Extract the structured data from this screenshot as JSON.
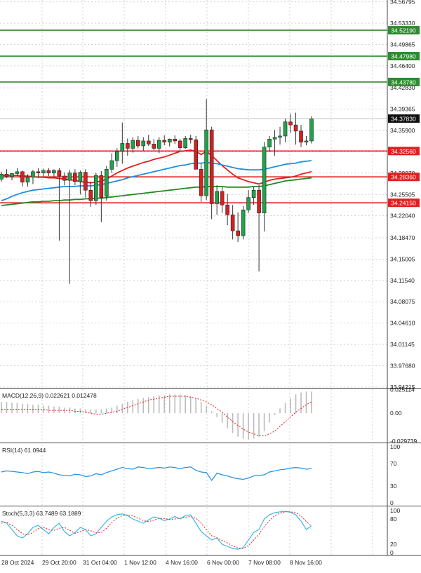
{
  "chart_data": {
    "type": "candlestick",
    "timeframe_labels": [
      "28 Oct 2024",
      "29 Oct 20:00",
      "31 Oct 04:00",
      "1 Nov 12:00",
      "4 Nov 16:00",
      "6 Nov 00:00",
      "7 Nov 08:00",
      "8 Nov 16:00"
    ],
    "price_axis": {
      "ticks": [
        "34.56795",
        "34.53330",
        "34.49865",
        "34.46400",
        "34.42830",
        "34.39365",
        "34.35900",
        "34.32435",
        "34.28970",
        "34.25505",
        "34.22040",
        "34.18470",
        "34.15005",
        "34.11540",
        "34.08075",
        "34.04610",
        "34.01145",
        "33.97680",
        "33.94215"
      ],
      "range": [
        33.942,
        34.571
      ],
      "current_price": "34.37830"
    },
    "horizontal_levels": [
      {
        "value": 34.5219,
        "label": "34.52190",
        "color": "#2e8b2e"
      },
      {
        "value": 34.4798,
        "label": "34.47980",
        "color": "#2e8b2e"
      },
      {
        "value": 34.4378,
        "label": "34.43780",
        "color": "#2e8b2e"
      },
      {
        "value": 34.3256,
        "label": "34.32560",
        "color": "#e02020"
      },
      {
        "value": 34.2836,
        "label": "34.28360",
        "color": "#e02020"
      },
      {
        "value": 34.2415,
        "label": "34.24150",
        "color": "#e02020"
      }
    ],
    "candles": [
      [
        34.28,
        34.292,
        34.276,
        34.288
      ],
      [
        34.288,
        34.296,
        34.282,
        34.284
      ],
      [
        34.284,
        34.29,
        34.278,
        34.289
      ],
      [
        34.289,
        34.298,
        34.285,
        34.292
      ],
      [
        34.292,
        34.294,
        34.268,
        34.275
      ],
      [
        34.275,
        34.288,
        34.268,
        34.283
      ],
      [
        34.283,
        34.295,
        34.272,
        34.292
      ],
      [
        34.292,
        34.298,
        34.283,
        34.29
      ],
      [
        34.29,
        34.297,
        34.283,
        34.294
      ],
      [
        34.294,
        34.298,
        34.285,
        34.29
      ],
      [
        34.29,
        34.296,
        34.284,
        34.294
      ],
      [
        34.294,
        34.298,
        34.18,
        34.285
      ],
      [
        34.285,
        34.291,
        34.27,
        34.278
      ],
      [
        34.278,
        34.295,
        34.11,
        34.29
      ],
      [
        34.29,
        34.296,
        34.27,
        34.276
      ],
      [
        34.276,
        34.294,
        34.255,
        34.291
      ],
      [
        34.291,
        34.296,
        34.25,
        34.262
      ],
      [
        34.262,
        34.276,
        34.235,
        34.245
      ],
      [
        34.245,
        34.29,
        34.238,
        34.286
      ],
      [
        34.286,
        34.293,
        34.21,
        34.25
      ],
      [
        34.252,
        34.301,
        34.245,
        34.296
      ],
      [
        34.296,
        34.322,
        34.29,
        34.31
      ],
      [
        34.31,
        34.33,
        34.3,
        34.325
      ],
      [
        34.325,
        34.372,
        34.305,
        34.338
      ],
      [
        34.338,
        34.346,
        34.318,
        34.33
      ],
      [
        34.33,
        34.348,
        34.323,
        34.343
      ],
      [
        34.343,
        34.35,
        34.33,
        34.334
      ],
      [
        34.334,
        34.348,
        34.326,
        34.342
      ],
      [
        34.342,
        34.352,
        34.334,
        34.337
      ],
      [
        34.337,
        34.345,
        34.327,
        34.33
      ],
      [
        34.33,
        34.348,
        34.322,
        34.343
      ],
      [
        34.343,
        34.351,
        34.335,
        34.34
      ],
      [
        34.34,
        34.346,
        34.333,
        34.345
      ],
      [
        34.345,
        34.351,
        34.337,
        34.342
      ],
      [
        34.342,
        34.345,
        34.327,
        34.331
      ],
      [
        34.331,
        34.35,
        34.329,
        34.346
      ],
      [
        34.346,
        34.352,
        34.338,
        34.344
      ],
      [
        34.344,
        34.35,
        34.296,
        34.296
      ],
      [
        34.296,
        34.305,
        34.243,
        34.253
      ],
      [
        34.253,
        34.41,
        34.246,
        34.36
      ],
      [
        34.36,
        34.365,
        34.215,
        34.24
      ],
      [
        34.24,
        34.27,
        34.222,
        34.26
      ],
      [
        34.26,
        34.267,
        34.225,
        34.238
      ],
      [
        34.238,
        34.256,
        34.205,
        34.222
      ],
      [
        34.222,
        34.238,
        34.182,
        34.196
      ],
      [
        34.196,
        34.226,
        34.178,
        34.188
      ],
      [
        34.188,
        34.236,
        34.182,
        34.23
      ],
      [
        34.23,
        34.262,
        34.225,
        34.25
      ],
      [
        34.25,
        34.267,
        34.238,
        34.262
      ],
      [
        34.262,
        34.27,
        34.13,
        34.225
      ],
      [
        34.225,
        34.34,
        34.195,
        34.332
      ],
      [
        34.332,
        34.35,
        34.324,
        34.345
      ],
      [
        34.345,
        34.36,
        34.318,
        34.348
      ],
      [
        34.348,
        34.365,
        34.336,
        34.35
      ],
      [
        34.35,
        34.378,
        34.34,
        34.373
      ],
      [
        34.373,
        34.386,
        34.355,
        34.368
      ],
      [
        34.368,
        34.388,
        34.336,
        34.358
      ],
      [
        34.358,
        34.368,
        34.332,
        34.34
      ],
      [
        34.34,
        34.35,
        34.335,
        34.342
      ],
      [
        34.342,
        34.382,
        34.338,
        34.378
      ]
    ],
    "moving_averages": [
      {
        "color": "#e02020",
        "values": [
          34.286,
          34.286,
          34.286,
          34.286,
          34.285,
          34.285,
          34.284,
          34.283,
          34.283,
          34.282,
          34.282,
          34.281,
          34.28,
          34.279,
          34.278,
          34.276,
          34.275,
          34.274,
          34.275,
          34.277,
          34.28,
          34.285,
          34.29,
          34.294,
          34.298,
          34.301,
          34.304,
          34.307,
          34.309,
          34.312,
          34.314,
          34.316,
          34.319,
          34.322,
          34.325,
          34.326,
          34.327,
          34.325,
          34.32,
          34.325,
          34.318,
          34.31,
          34.302,
          34.295,
          34.288,
          34.282,
          34.279,
          34.276,
          34.274,
          34.272,
          34.275,
          34.278,
          34.28,
          34.281,
          34.282,
          34.283,
          34.285,
          34.288,
          34.29,
          34.292
        ]
      },
      {
        "color": "#1e8fe0",
        "values": [
          34.245,
          34.248,
          34.252,
          34.255,
          34.258,
          34.26,
          34.262,
          34.263,
          34.264,
          34.265,
          34.266,
          34.267,
          34.268,
          34.268,
          34.268,
          34.269,
          34.269,
          34.269,
          34.27,
          34.271,
          34.273,
          34.275,
          34.277,
          34.279,
          34.282,
          34.284,
          34.286,
          34.288,
          34.29,
          34.292,
          34.294,
          34.296,
          34.298,
          34.3,
          34.302,
          34.303,
          34.305,
          34.306,
          34.306,
          34.307,
          34.306,
          34.305,
          34.303,
          34.301,
          34.299,
          34.297,
          34.296,
          34.295,
          34.295,
          34.295,
          34.296,
          34.298,
          34.3,
          34.302,
          34.304,
          34.305,
          34.306,
          34.308,
          34.309,
          34.31
        ]
      },
      {
        "color": "#228b22",
        "values": [
          34.237,
          34.238,
          34.239,
          34.24,
          34.241,
          34.242,
          34.243,
          34.243,
          34.244,
          34.244,
          34.245,
          34.245,
          34.246,
          34.246,
          34.247,
          34.247,
          34.248,
          34.248,
          34.249,
          34.249,
          34.25,
          34.251,
          34.252,
          34.253,
          34.254,
          34.255,
          34.256,
          34.257,
          34.258,
          34.259,
          34.26,
          34.261,
          34.262,
          34.263,
          34.264,
          34.265,
          34.266,
          34.267,
          34.267,
          34.268,
          34.268,
          34.268,
          34.268,
          34.267,
          34.267,
          34.267,
          34.267,
          34.267,
          34.268,
          34.268,
          34.269,
          34.271,
          34.273,
          34.275,
          34.277,
          34.278,
          34.279,
          34.28,
          34.281,
          34.282
        ]
      }
    ],
    "macd": {
      "label": "MACD(12,26,9) 0.022621 0.012478",
      "ticks": [
        "0.025114",
        "0.00",
        "-0.029739"
      ],
      "range": [
        -0.0305,
        0.0255
      ],
      "histogram": [
        0.012,
        0.012,
        0.011,
        0.011,
        0.01,
        0.01,
        0.009,
        0.009,
        0.008,
        0.008,
        0.007,
        0.007,
        0.006,
        0.006,
        0.005,
        0.005,
        0.004,
        0.004,
        0.004,
        0.004,
        0.005,
        0.006,
        0.008,
        0.01,
        0.012,
        0.014,
        0.015,
        0.016,
        0.017,
        0.018,
        0.019,
        0.019,
        0.02,
        0.02,
        0.02,
        0.019,
        0.018,
        0.016,
        0.012,
        0.008,
        0.002,
        -0.004,
        -0.01,
        -0.016,
        -0.021,
        -0.025,
        -0.027,
        -0.028,
        -0.027,
        -0.025,
        -0.019,
        -0.01,
        -0.002,
        0.005,
        0.011,
        0.016,
        0.02,
        0.022,
        0.023,
        0.023
      ],
      "signal": [
        0.004,
        0.004,
        0.004,
        0.004,
        0.004,
        0.004,
        0.004,
        0.004,
        0.004,
        0.003,
        0.003,
        0.003,
        0.003,
        0.003,
        0.002,
        0.002,
        0.001,
        0.0,
        -0.001,
        -0.001,
        0.0,
        0.001,
        0.002,
        0.004,
        0.006,
        0.008,
        0.01,
        0.012,
        0.014,
        0.015,
        0.016,
        0.017,
        0.018,
        0.018,
        0.018,
        0.018,
        0.017,
        0.016,
        0.014,
        0.012,
        0.009,
        0.005,
        0.001,
        -0.004,
        -0.009,
        -0.013,
        -0.017,
        -0.02,
        -0.022,
        -0.024,
        -0.024,
        -0.022,
        -0.019,
        -0.014,
        -0.009,
        -0.004,
        0.001,
        0.005,
        0.009,
        0.012
      ]
    },
    "rsi": {
      "label": "RSI(14) 61.0944",
      "ticks": [
        "100",
        "70",
        "30",
        "0"
      ],
      "range": [
        0,
        100
      ],
      "values": [
        55,
        57,
        56,
        55,
        54,
        52,
        55,
        56,
        54,
        55,
        53,
        50,
        49,
        48,
        51,
        50,
        47,
        48,
        52,
        50,
        54,
        57,
        60,
        63,
        61,
        60,
        64,
        63,
        61,
        62,
        63,
        62,
        64,
        63,
        61,
        63,
        64,
        58,
        55,
        54,
        40,
        53,
        50,
        48,
        45,
        43,
        42,
        44,
        48,
        49,
        50,
        55,
        57,
        59,
        60,
        62,
        63,
        62,
        60,
        61
      ]
    },
    "stochastic": {
      "label": "Stoch(5,3,3) 63.7489 63.1889",
      "ticks": [
        "100",
        "80",
        "20",
        "0"
      ],
      "range": [
        0,
        100
      ],
      "k": [
        75,
        70,
        55,
        40,
        35,
        45,
        60,
        65,
        55,
        45,
        60,
        70,
        50,
        40,
        48,
        60,
        55,
        40,
        45,
        60,
        75,
        85,
        90,
        92,
        88,
        80,
        75,
        70,
        78,
        85,
        82,
        76,
        80,
        86,
        80,
        88,
        90,
        70,
        50,
        40,
        30,
        35,
        20,
        15,
        10,
        8,
        12,
        30,
        48,
        55,
        80,
        90,
        95,
        97,
        98,
        96,
        90,
        75,
        55,
        64
      ],
      "d": [
        70,
        72,
        65,
        55,
        45,
        42,
        48,
        57,
        60,
        55,
        53,
        58,
        60,
        53,
        46,
        50,
        55,
        52,
        47,
        48,
        58,
        72,
        82,
        88,
        90,
        87,
        82,
        76,
        74,
        77,
        82,
        81,
        79,
        80,
        82,
        84,
        86,
        82,
        70,
        55,
        40,
        35,
        29,
        23,
        16,
        11,
        10,
        17,
        30,
        44,
        62,
        76,
        88,
        94,
        97,
        97,
        95,
        87,
        74,
        63
      ]
    }
  }
}
